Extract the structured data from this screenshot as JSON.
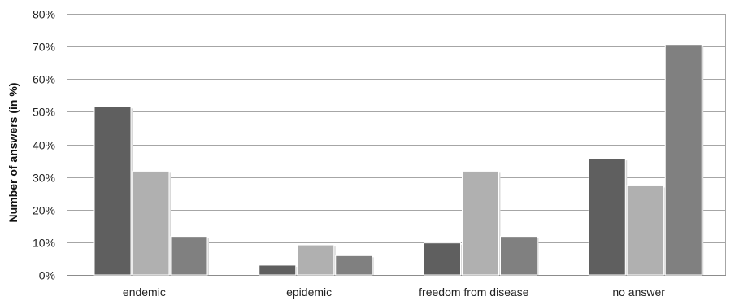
{
  "chart_data": {
    "type": "bar",
    "title": "",
    "xlabel": "",
    "ylabel": "Number of answers (in %)",
    "ylim": [
      0,
      80
    ],
    "ytick_step": 10,
    "ytick_suffix": "%",
    "grid": true,
    "categories": [
      "endemic",
      "epidemic",
      "freedom from disease",
      "no answer"
    ],
    "series": [
      {
        "color": "#5f5f5f",
        "values": [
          51.5,
          3.0,
          9.8,
          35.6
        ]
      },
      {
        "color": "#b0b0b0",
        "values": [
          31.8,
          9.2,
          31.8,
          27.3
        ]
      },
      {
        "color": "#808080",
        "values": [
          11.8,
          5.9,
          11.8,
          70.6
        ]
      }
    ]
  }
}
